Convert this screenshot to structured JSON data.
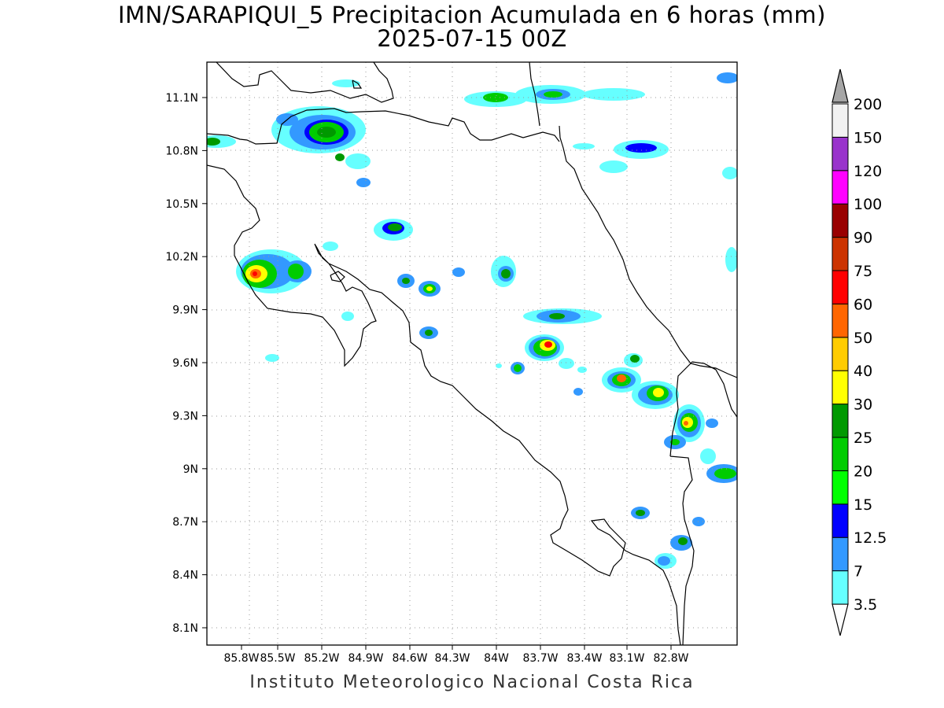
{
  "title": "IMN/SARAPIQUI_5 Precipitacion Acumulada en 6 horas (mm)",
  "subtitle": "2025-07-15 00Z",
  "footer": "Instituto Meteorologico Nacional Costa Rica",
  "lat_labels": [
    "11.1N",
    "10.8N",
    "10.5N",
    "10.2N",
    "9.9N",
    "9.6N",
    "9.3N",
    "9N",
    "8.7N",
    "8.4N",
    "8.1N"
  ],
  "lon_labels": [
    "85.8W",
    "85.5W",
    "85.2W",
    "84.9W",
    "84.6W",
    "84.3W",
    "84W",
    "83.7W",
    "83.4W",
    "83.1W",
    "82.8W"
  ],
  "colorbar": {
    "levels": [
      "3.5",
      "7",
      "12.5",
      "15",
      "20",
      "25",
      "30",
      "40",
      "50",
      "60",
      "75",
      "90",
      "100",
      "120",
      "150",
      "200"
    ],
    "colors": [
      "#66ffff",
      "#3399ff",
      "#0000ff",
      "#00ff00",
      "#00cc00",
      "#009900",
      "#ffff00",
      "#ffcc00",
      "#ff6600",
      "#ff0000",
      "#cc3300",
      "#990000",
      "#ff00ff",
      "#9933cc",
      "#f2f2f2",
      "#a6a6a6"
    ]
  }
}
